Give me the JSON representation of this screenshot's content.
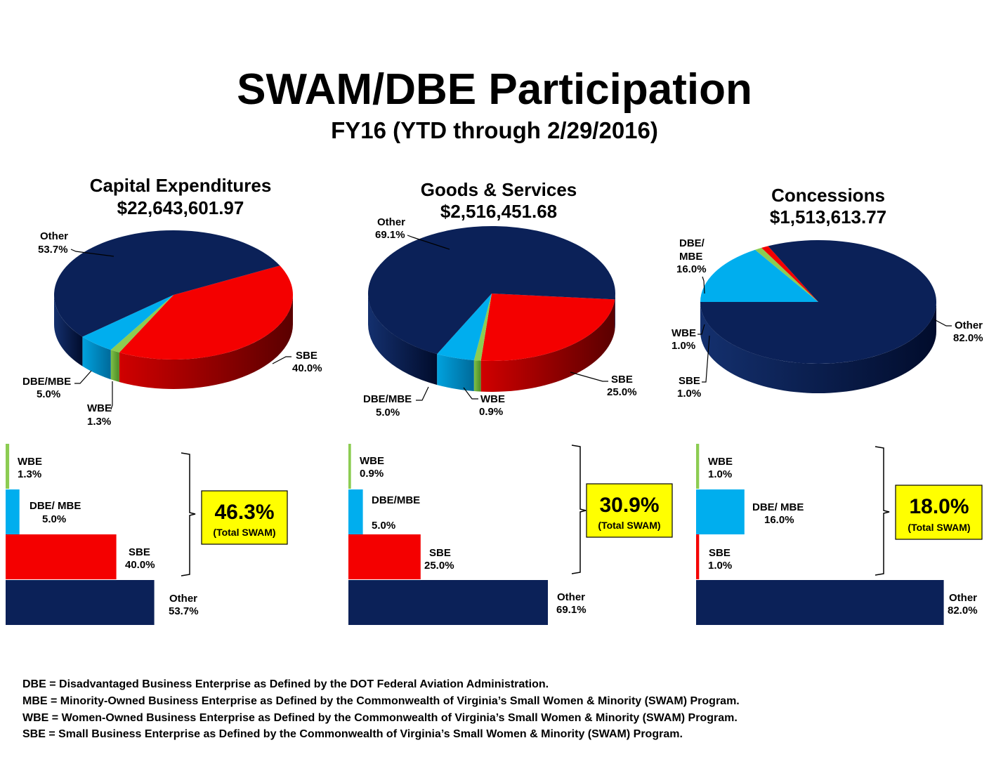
{
  "header": {
    "title": "SWAM/DBE Participation",
    "subtitle": "FY16 (YTD through 2/29/2016)"
  },
  "colors": {
    "Other": "#0b2158",
    "SBE": "#f40000",
    "DBE/MBE": "#00aeee",
    "WBE": "#8ccc52",
    "total_box": "#ffff00"
  },
  "chart_data": [
    {
      "type": "pie",
      "title": "Capital Expenditures",
      "amount": "$22,643,601.97",
      "slices": [
        {
          "name": "Other",
          "value": 53.7,
          "label": "53.7%"
        },
        {
          "name": "SBE",
          "value": 40.0,
          "label": "40.0%"
        },
        {
          "name": "WBE",
          "value": 1.3,
          "label": "1.3%"
        },
        {
          "name": "DBE/MBE",
          "value": 5.0,
          "label": "5.0%"
        }
      ],
      "bars": {
        "type": "bar",
        "categories": [
          "WBE",
          "DBE/ MBE",
          "SBE",
          "Other"
        ],
        "values": [
          1.3,
          5.0,
          40.0,
          53.7
        ],
        "labels": [
          "1.3%",
          "5.0%",
          "40.0%",
          "53.7%"
        ]
      },
      "total": {
        "value": "46.3%",
        "caption": "(Total SWAM)"
      }
    },
    {
      "type": "pie",
      "title": "Goods & Services",
      "amount": "$2,516,451.68",
      "slices": [
        {
          "name": "Other",
          "value": 69.1,
          "label": "69.1%"
        },
        {
          "name": "SBE",
          "value": 25.0,
          "label": "25.0%"
        },
        {
          "name": "WBE",
          "value": 0.9,
          "label": "0.9%"
        },
        {
          "name": "DBE/MBE",
          "value": 5.0,
          "label": "5.0%"
        }
      ],
      "bars": {
        "type": "bar",
        "categories": [
          "WBE",
          "DBE/ MBE",
          "SBE",
          "Other"
        ],
        "values": [
          0.9,
          5.0,
          25.0,
          69.1
        ],
        "labels": [
          "0.9%",
          "5.0%",
          "25.0%",
          "69.1%"
        ]
      },
      "total": {
        "value": "30.9%",
        "caption": "(Total SWAM)"
      }
    },
    {
      "type": "pie",
      "title": "Concessions",
      "amount": "$1,513,613.77",
      "slices": [
        {
          "name": "Other",
          "value": 82.0,
          "label": "82.0%"
        },
        {
          "name": "SBE",
          "value": 1.0,
          "label": "1.0%"
        },
        {
          "name": "WBE",
          "value": 1.0,
          "label": "1.0%"
        },
        {
          "name": "DBE/ MBE",
          "value": 16.0,
          "label": "16.0%"
        }
      ],
      "bars": {
        "type": "bar",
        "categories": [
          "WBE",
          "DBE/ MBE",
          "SBE",
          "Other"
        ],
        "values": [
          1.0,
          16.0,
          1.0,
          82.0
        ],
        "labels": [
          "1.0%",
          "16.0%",
          "1.0%",
          "82.0%"
        ]
      },
      "total": {
        "value": "18.0%",
        "caption": "(Total SWAM)"
      }
    }
  ],
  "definitions": [
    "DBE = Disadvantaged Business Enterprise as Defined by the DOT Federal Aviation Administration.",
    "MBE = Minority-Owned Business Enterprise as Defined by the Commonwealth of Virginia’s Small Women & Minority (SWAM) Program.",
    "WBE = Women-Owned Business Enterprise as Defined by the Commonwealth of Virginia’s Small Women & Minority (SWAM) Program.",
    "SBE = Small Business Enterprise as Defined by the Commonwealth of Virginia’s Small Women & Minority (SWAM) Program."
  ]
}
